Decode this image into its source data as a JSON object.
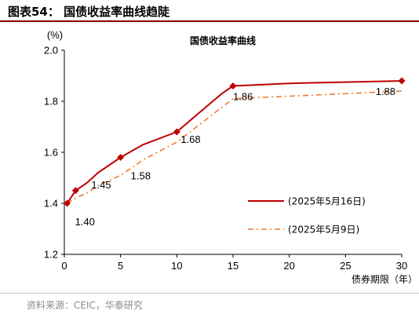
{
  "figure": {
    "label": "图表54：  国债收益率曲线趋陡",
    "source": "资料来源：CEIC，华泰研究"
  },
  "chart_data": {
    "type": "line",
    "title": "国债收益率曲线",
    "xlabel": "债券期限（年）",
    "ylabel": "(%)",
    "xlim": [
      0,
      30
    ],
    "ylim": [
      1.2,
      2.0
    ],
    "x_ticks": [
      "0",
      "5",
      "10",
      "15",
      "20",
      "25",
      "30"
    ],
    "y_ticks": [
      "1.2",
      "1.4",
      "1.6",
      "1.8",
      "2.0"
    ],
    "legend_position": "bottom-right",
    "grid": false,
    "series": [
      {
        "name": "(2025年5月16日)",
        "color": "#c00000",
        "style": "solid",
        "marker": "diamond",
        "x": [
          0.25,
          1,
          2,
          3,
          5,
          7,
          10,
          14,
          15,
          20,
          30
        ],
        "y": [
          1.4,
          1.45,
          1.48,
          1.52,
          1.58,
          1.63,
          1.68,
          1.83,
          1.86,
          1.87,
          1.88
        ],
        "marker_x": [
          0.25,
          1,
          5,
          10,
          15,
          30
        ],
        "marker_y": [
          1.4,
          1.45,
          1.58,
          1.68,
          1.86,
          1.88
        ]
      },
      {
        "name": "(2025年5月9日)",
        "color": "#ed7d31",
        "style": "dashdot",
        "marker": "none",
        "x": [
          0.25,
          1,
          2,
          3,
          5,
          7,
          10,
          15,
          20,
          30
        ],
        "y": [
          1.4,
          1.42,
          1.44,
          1.47,
          1.51,
          1.57,
          1.64,
          1.81,
          1.82,
          1.84
        ]
      }
    ],
    "annotations": [
      {
        "text": "1.40",
        "x": 0.25,
        "y": 1.4
      },
      {
        "text": "1.45",
        "x": 1,
        "y": 1.45
      },
      {
        "text": "1.58",
        "x": 5,
        "y": 1.58
      },
      {
        "text": "1.68",
        "x": 10,
        "y": 1.68
      },
      {
        "text": "1.86",
        "x": 15,
        "y": 1.86
      },
      {
        "text": "1.88",
        "x": 30,
        "y": 1.88
      }
    ]
  }
}
